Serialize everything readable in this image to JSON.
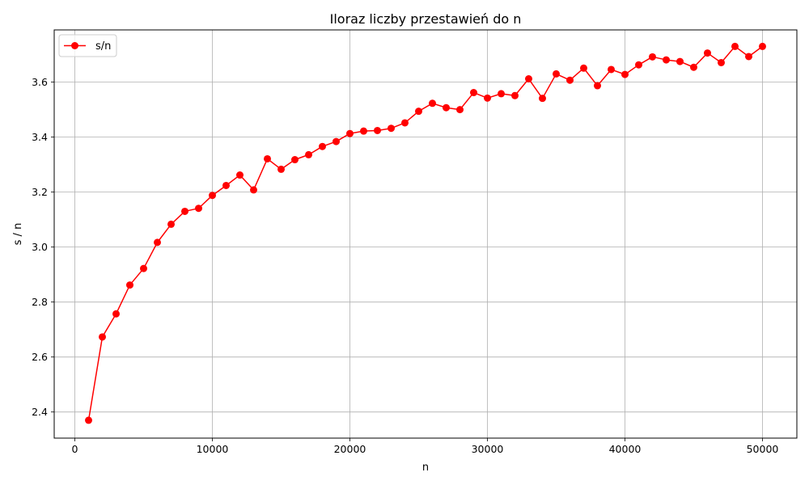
{
  "chart_data": {
    "type": "line",
    "title": "Iloraz liczby przestawień do n",
    "xlabel": "n",
    "ylabel": "s / n",
    "xlim": [
      -1500,
      52500
    ],
    "ylim": [
      2.305,
      3.79
    ],
    "xticks": [
      0,
      10000,
      20000,
      30000,
      40000,
      50000
    ],
    "yticks": [
      2.4,
      2.6,
      2.8,
      3.0,
      3.2,
      3.4,
      3.6
    ],
    "xtick_labels": [
      "0",
      "10000",
      "20000",
      "30000",
      "40000",
      "50000"
    ],
    "ytick_labels": [
      "2.4",
      "2.6",
      "2.8",
      "3.0",
      "3.2",
      "3.4",
      "3.6"
    ],
    "grid": true,
    "legend_position": "top-left",
    "series": [
      {
        "name": "s/n",
        "color": "#ff0000",
        "marker": "circle",
        "x": [
          1000,
          2000,
          3000,
          4000,
          5000,
          6000,
          7000,
          8000,
          9000,
          10000,
          11000,
          12000,
          13000,
          14000,
          15000,
          16000,
          17000,
          18000,
          19000,
          20000,
          21000,
          22000,
          23000,
          24000,
          25000,
          26000,
          27000,
          28000,
          29000,
          30000,
          31000,
          32000,
          33000,
          34000,
          35000,
          36000,
          37000,
          38000,
          39000,
          40000,
          41000,
          42000,
          43000,
          44000,
          45000,
          46000,
          47000,
          48000,
          49000,
          50000
        ],
        "y": [
          2.37,
          2.673,
          2.757,
          2.862,
          2.922,
          3.017,
          3.083,
          3.13,
          3.141,
          3.188,
          3.224,
          3.262,
          3.208,
          3.321,
          3.283,
          3.318,
          3.336,
          3.366,
          3.384,
          3.413,
          3.422,
          3.424,
          3.432,
          3.452,
          3.494,
          3.523,
          3.507,
          3.5,
          3.562,
          3.542,
          3.558,
          3.551,
          3.612,
          3.541,
          3.63,
          3.607,
          3.651,
          3.587,
          3.646,
          3.628,
          3.663,
          3.692,
          3.681,
          3.675,
          3.654,
          3.706,
          3.671,
          3.73,
          3.693,
          3.73
        ]
      }
    ]
  }
}
